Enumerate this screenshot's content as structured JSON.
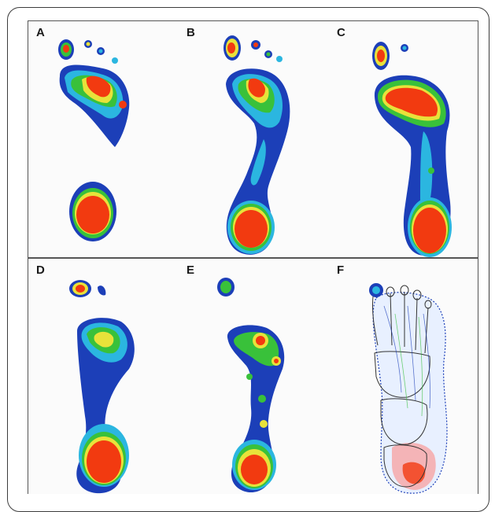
{
  "panels": [
    {
      "label": "A"
    },
    {
      "label": "B"
    },
    {
      "label": "C"
    },
    {
      "label": "D"
    },
    {
      "label": "E"
    },
    {
      "label": "F"
    }
  ],
  "colors": {
    "blue": "#1c3fb8",
    "cyan": "#2bb6e0",
    "green": "#39c13a",
    "yellow": "#e8e23a",
    "red": "#f23a10",
    "border": "#3c3c3c"
  }
}
